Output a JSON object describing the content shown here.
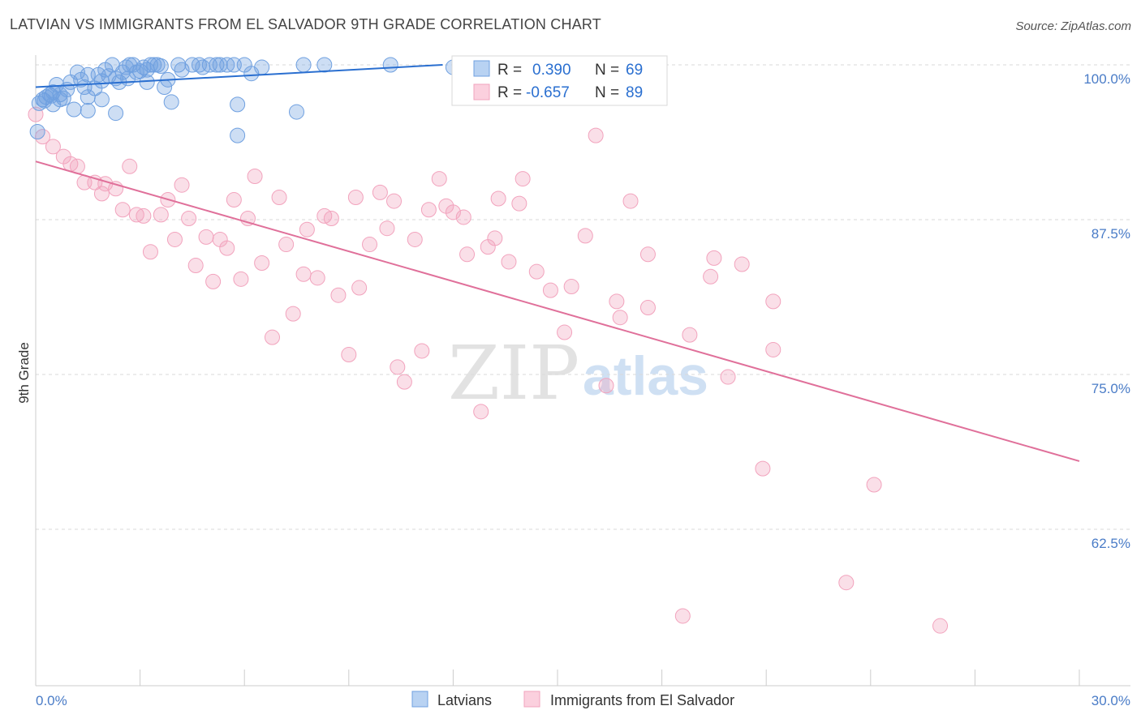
{
  "title": "LATVIAN VS IMMIGRANTS FROM EL SALVADOR 9TH GRADE CORRELATION CHART",
  "source": "Source: ZipAtlas.com",
  "watermark": {
    "zip": "ZIP",
    "atlas": "atlas"
  },
  "colors": {
    "blue": "#6fa0e0",
    "blue_line": "#2a6fd0",
    "pink": "#f2a3bd",
    "pink_line": "#e0709a",
    "tick_text": "#4a7cc7",
    "grid": "#d9d9d9"
  },
  "legend_box": {
    "rows": [
      {
        "r_label": "R =",
        "r_value": "0.390",
        "n_label": "N =",
        "n_value": "69"
      },
      {
        "r_label": "R =",
        "r_value": "-0.657",
        "n_label": "N =",
        "n_value": "89"
      }
    ]
  },
  "bottom_legend": {
    "items": [
      "Latvians",
      "Immigrants from El Salvador"
    ]
  },
  "chart_data": {
    "type": "scatter",
    "xlabel": "",
    "ylabel": "9th Grade",
    "xlim": [
      0,
      30
    ],
    "ylim": [
      50.5,
      101.5
    ],
    "x_tick_labels": [
      "0.0%",
      "30.0%"
    ],
    "y_ticks": [
      100,
      87.5,
      75,
      62.5
    ],
    "y_tick_labels": [
      "100.0%",
      "87.5%",
      "75.0%",
      "62.5%"
    ],
    "grid": "horizontal dashed",
    "legend_position": "top-center",
    "series": [
      {
        "name": "Latvians",
        "r": 0.39,
        "n": 69,
        "trend": {
          "x": [
            0,
            11.7
          ],
          "y": [
            98.2,
            100.0
          ]
        },
        "points": [
          [
            0.1,
            96.9
          ],
          [
            0.2,
            97.2
          ],
          [
            0.3,
            97.4
          ],
          [
            0.4,
            97.6
          ],
          [
            0.5,
            97.8
          ],
          [
            0.5,
            96.8
          ],
          [
            0.6,
            98.4
          ],
          [
            0.7,
            97.6
          ],
          [
            0.7,
            97.2
          ],
          [
            0.9,
            98.0
          ],
          [
            1.0,
            98.6
          ],
          [
            1.2,
            99.4
          ],
          [
            1.1,
            96.4
          ],
          [
            1.3,
            98.8
          ],
          [
            1.5,
            99.2
          ],
          [
            1.5,
            97.4
          ],
          [
            1.5,
            96.3
          ],
          [
            1.7,
            98.1
          ],
          [
            1.8,
            99.2
          ],
          [
            1.9,
            97.2
          ],
          [
            1.9,
            98.7
          ],
          [
            2.0,
            99.6
          ],
          [
            2.1,
            99.1
          ],
          [
            2.2,
            100.0
          ],
          [
            2.3,
            98.9
          ],
          [
            2.3,
            96.1
          ],
          [
            2.4,
            98.6
          ],
          [
            2.5,
            99.4
          ],
          [
            2.6,
            99.8
          ],
          [
            2.7,
            100.0
          ],
          [
            2.8,
            100.0
          ],
          [
            2.9,
            99.4
          ],
          [
            3.0,
            99.5
          ],
          [
            3.1,
            99.8
          ],
          [
            3.2,
            99.6
          ],
          [
            3.3,
            100.0
          ],
          [
            3.4,
            100.0
          ],
          [
            3.5,
            100.0
          ],
          [
            3.2,
            98.6
          ],
          [
            3.7,
            98.2
          ],
          [
            3.8,
            98.8
          ],
          [
            3.9,
            97.0
          ],
          [
            4.1,
            100.0
          ],
          [
            4.2,
            99.6
          ],
          [
            4.5,
            100.0
          ],
          [
            4.7,
            100.0
          ],
          [
            4.8,
            99.8
          ],
          [
            5.0,
            100.0
          ],
          [
            5.2,
            100.0
          ],
          [
            5.3,
            100.0
          ],
          [
            5.5,
            100.0
          ],
          [
            5.7,
            100.0
          ],
          [
            5.8,
            96.8
          ],
          [
            5.8,
            94.3
          ],
          [
            6.0,
            100.0
          ],
          [
            6.2,
            99.3
          ],
          [
            6.5,
            99.8
          ],
          [
            7.5,
            96.2
          ],
          [
            7.7,
            100.0
          ],
          [
            8.3,
            100.0
          ],
          [
            10.2,
            100.0
          ],
          [
            12.0,
            99.8
          ],
          [
            0.05,
            94.6
          ],
          [
            0.25,
            97.1
          ],
          [
            0.45,
            97.5
          ],
          [
            0.8,
            97.3
          ],
          [
            1.4,
            98.2
          ],
          [
            2.65,
            98.9
          ],
          [
            3.6,
            99.9
          ]
        ]
      },
      {
        "name": "Immigrants from El Salvador",
        "r": -0.657,
        "n": 89,
        "trend": {
          "x": [
            0,
            30
          ],
          "y": [
            92.2,
            68.0
          ]
        },
        "points": [
          [
            0.0,
            96.0
          ],
          [
            0.2,
            94.2
          ],
          [
            0.5,
            93.4
          ],
          [
            0.8,
            92.6
          ],
          [
            1.0,
            92.0
          ],
          [
            1.2,
            91.8
          ],
          [
            1.4,
            90.5
          ],
          [
            1.7,
            90.5
          ],
          [
            1.9,
            89.6
          ],
          [
            2.0,
            90.4
          ],
          [
            2.3,
            90.0
          ],
          [
            2.5,
            88.3
          ],
          [
            2.7,
            91.8
          ],
          [
            2.9,
            87.9
          ],
          [
            3.1,
            87.8
          ],
          [
            3.3,
            84.9
          ],
          [
            3.6,
            87.9
          ],
          [
            3.8,
            89.1
          ],
          [
            4.0,
            85.9
          ],
          [
            4.2,
            90.3
          ],
          [
            4.4,
            87.6
          ],
          [
            4.6,
            83.8
          ],
          [
            4.9,
            86.1
          ],
          [
            5.1,
            82.5
          ],
          [
            5.3,
            85.9
          ],
          [
            5.5,
            85.2
          ],
          [
            5.7,
            89.1
          ],
          [
            5.9,
            82.7
          ],
          [
            6.1,
            87.6
          ],
          [
            6.3,
            91.0
          ],
          [
            6.5,
            84.0
          ],
          [
            6.8,
            78.0
          ],
          [
            7.0,
            89.3
          ],
          [
            7.2,
            85.5
          ],
          [
            7.4,
            79.9
          ],
          [
            7.7,
            83.1
          ],
          [
            7.8,
            86.7
          ],
          [
            8.1,
            82.8
          ],
          [
            8.3,
            87.8
          ],
          [
            8.5,
            87.6
          ],
          [
            8.7,
            81.4
          ],
          [
            9.0,
            76.6
          ],
          [
            9.2,
            89.3
          ],
          [
            9.3,
            82.0
          ],
          [
            9.6,
            85.5
          ],
          [
            9.9,
            89.7
          ],
          [
            10.1,
            86.8
          ],
          [
            10.3,
            89.0
          ],
          [
            10.4,
            75.6
          ],
          [
            10.6,
            74.4
          ],
          [
            10.9,
            85.9
          ],
          [
            11.1,
            76.9
          ],
          [
            11.3,
            88.3
          ],
          [
            11.6,
            90.8
          ],
          [
            11.8,
            88.6
          ],
          [
            12.0,
            88.1
          ],
          [
            12.3,
            87.7
          ],
          [
            12.4,
            84.7
          ],
          [
            12.8,
            72.0
          ],
          [
            13.0,
            85.3
          ],
          [
            13.2,
            86.0
          ],
          [
            13.3,
            89.2
          ],
          [
            13.6,
            84.1
          ],
          [
            13.9,
            88.8
          ],
          [
            14.0,
            90.8
          ],
          [
            14.4,
            83.3
          ],
          [
            14.8,
            81.8
          ],
          [
            15.2,
            78.4
          ],
          [
            15.4,
            82.1
          ],
          [
            15.8,
            86.2
          ],
          [
            16.1,
            94.3
          ],
          [
            16.4,
            74.1
          ],
          [
            16.7,
            80.9
          ],
          [
            16.8,
            79.6
          ],
          [
            17.1,
            89.0
          ],
          [
            17.6,
            84.7
          ],
          [
            17.6,
            80.4
          ],
          [
            18.6,
            55.5
          ],
          [
            18.8,
            78.2
          ],
          [
            19.4,
            82.9
          ],
          [
            19.5,
            84.4
          ],
          [
            19.9,
            74.8
          ],
          [
            20.3,
            83.9
          ],
          [
            20.9,
            67.4
          ],
          [
            21.2,
            77.0
          ],
          [
            21.2,
            80.9
          ],
          [
            23.3,
            58.2
          ],
          [
            24.1,
            66.1
          ],
          [
            26.0,
            54.7
          ]
        ]
      }
    ]
  }
}
